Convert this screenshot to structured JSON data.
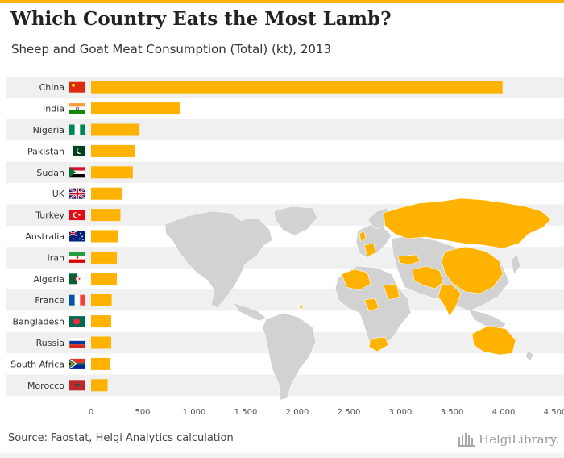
{
  "header": {
    "title": "Which Country Eats the Most Lamb?",
    "subtitle": "Sheep and Goat Meat Consumption (Total) (kt), 2013"
  },
  "footer": {
    "source": "Source: Faostat, Helgi Analytics calculation",
    "logo_text": "HelgiLibrary."
  },
  "colors": {
    "bar": "#ffb300",
    "accent": "#ffb300",
    "row_stripe": "#f0f0f0",
    "map_land": "#d2d2d2",
    "map_highlight": "#ffb300",
    "text": "#333333"
  },
  "chart_data": {
    "type": "bar",
    "orientation": "horizontal",
    "title": "Which Country Eats the Most Lamb?",
    "subtitle": "Sheep and Goat Meat Consumption (Total) (kt), 2013",
    "categories": [
      "China",
      "India",
      "Nigeria",
      "Pakistan",
      "Sudan",
      "UK",
      "Turkey",
      "Australia",
      "Iran",
      "Algeria",
      "France",
      "Bangladesh",
      "Russia",
      "South Africa",
      "Morocco"
    ],
    "values": [
      3990,
      860,
      470,
      430,
      405,
      300,
      285,
      260,
      250,
      250,
      200,
      195,
      195,
      180,
      160
    ],
    "xlim": [
      0,
      4500
    ],
    "xticks": [
      0,
      500,
      1000,
      1500,
      2000,
      2500,
      3000,
      3500,
      4000,
      4500
    ],
    "xtick_labels": [
      "0",
      "500",
      "1 000",
      "1 500",
      "2 000",
      "2 500",
      "3 000",
      "3 500",
      "4 000",
      "4 500"
    ],
    "xlabel": "",
    "ylabel": "",
    "grid": false
  }
}
